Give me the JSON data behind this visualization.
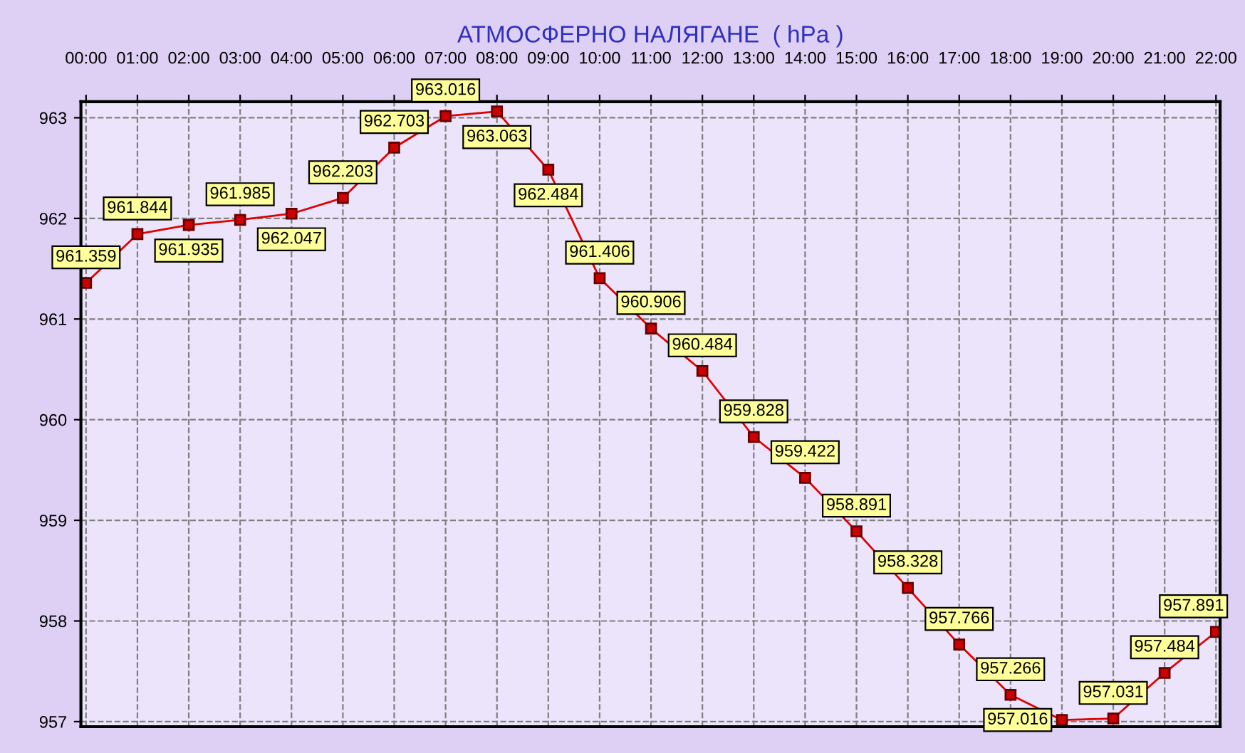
{
  "chart_data": {
    "type": "line",
    "title": "АТМОСФЕРНО НАЛЯГАНЕ  ( hPa )",
    "x": [
      0,
      1,
      2,
      3,
      4,
      5,
      6,
      7,
      8,
      9,
      10,
      11,
      12,
      13,
      14,
      15,
      16,
      17,
      18,
      19,
      20,
      21,
      22
    ],
    "series": [
      {
        "color": "#e00000",
        "values": [
          961.359,
          961.844,
          961.935,
          961.985,
          962.047,
          962.203,
          962.703,
          963.016,
          963.063,
          962.484,
          961.406,
          960.906,
          960.484,
          959.828,
          959.422,
          958.891,
          958.328,
          957.766,
          957.266,
          957.016,
          957.031,
          957.484,
          957.891
        ]
      }
    ],
    "data_labels": true,
    "marker": "square",
    "line_style": "solid",
    "grid": true,
    "legend": false,
    "xlim": [
      -0.1,
      22.08
    ],
    "ylim": [
      956.95,
      963.16
    ],
    "xticks": [
      {
        "value": 0,
        "label": "00:00"
      },
      {
        "value": 1,
        "label": "01:00"
      },
      {
        "value": 2,
        "label": "02:00"
      },
      {
        "value": 3,
        "label": "03:00"
      },
      {
        "value": 4,
        "label": "04:00"
      },
      {
        "value": 5,
        "label": "05:00"
      },
      {
        "value": 6,
        "label": "06:00"
      },
      {
        "value": 7,
        "label": "07:00"
      },
      {
        "value": 8,
        "label": "08:00"
      },
      {
        "value": 9,
        "label": "09:00"
      },
      {
        "value": 10,
        "label": "10:00"
      },
      {
        "value": 11,
        "label": "11:00"
      },
      {
        "value": 12,
        "label": "12:00"
      },
      {
        "value": 13,
        "label": "13:00"
      },
      {
        "value": 14,
        "label": "14:00"
      },
      {
        "value": 15,
        "label": "15:00"
      },
      {
        "value": 16,
        "label": "16:00"
      },
      {
        "value": 17,
        "label": "17:00"
      },
      {
        "value": 18,
        "label": "18:00"
      },
      {
        "value": 19,
        "label": "19:00"
      },
      {
        "value": 20,
        "label": "20:00"
      },
      {
        "value": 21,
        "label": "21:00"
      },
      {
        "value": 22,
        "label": "22:00"
      }
    ],
    "yticks": [
      957,
      958,
      959,
      960,
      961,
      962,
      963
    ]
  }
}
